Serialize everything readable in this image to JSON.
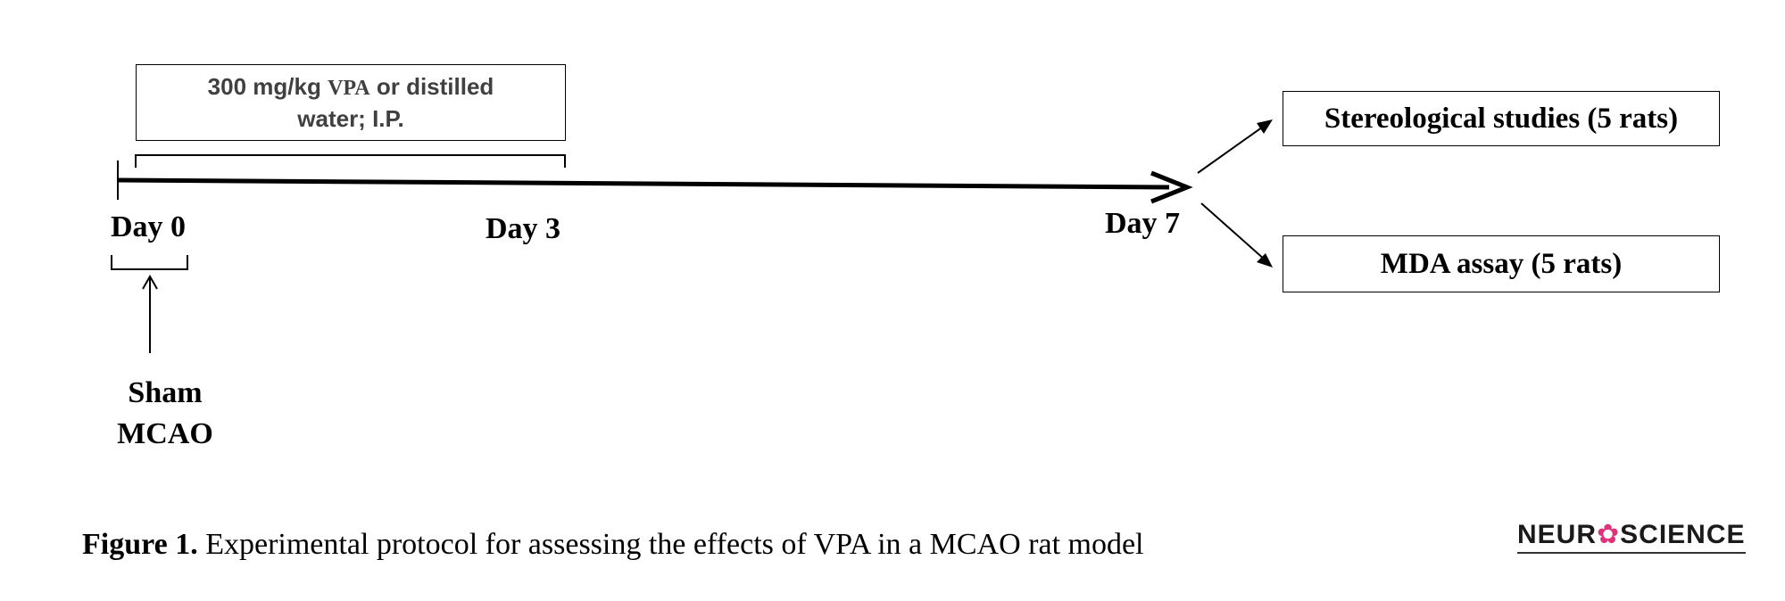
{
  "treatment": {
    "dose": "300 mg/kg ",
    "drug": "VPA",
    "rest_line1": " or distilled",
    "line2": "water; I.P."
  },
  "days": {
    "day0": "Day 0",
    "day3": "Day 3",
    "day7": "Day 7"
  },
  "groups": {
    "line1": "Sham",
    "line2": "MCAO"
  },
  "outcomes": {
    "stereology": "Stereological studies (5 rats)",
    "mda": "MDA assay (5 rats)"
  },
  "caption": {
    "label": "Figure 1.",
    "text": " Experimental protocol for assessing the effects of VPA in a MCAO rat model"
  },
  "logo": {
    "left": "NEUR",
    "mark": "✿",
    "right": "SCIENCE"
  }
}
